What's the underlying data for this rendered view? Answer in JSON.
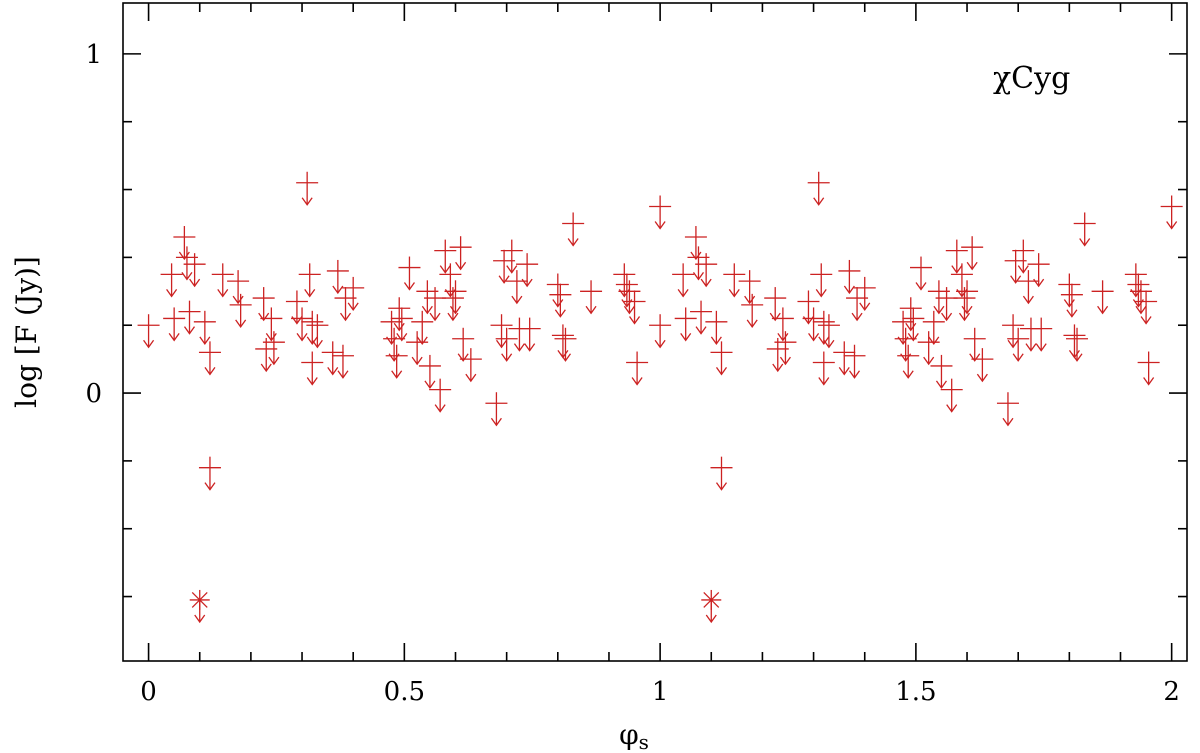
{
  "chart_data": {
    "type": "scatter",
    "title": "",
    "annotation": "χCyg",
    "xlabel_main": "φ",
    "xlabel_sub": "s",
    "ylabel": "log [F (Jy)]",
    "xlim": [
      -0.05,
      2.03
    ],
    "ylim": [
      -0.79,
      1.15
    ],
    "x_ticks": [
      0,
      0.5,
      1,
      1.5,
      2
    ],
    "x_tick_labels": [
      "0",
      "0.5",
      "1",
      "1.5",
      "2"
    ],
    "y_ticks": [
      0,
      1
    ],
    "y_tick_labels": [
      "0",
      "1"
    ],
    "marker_color": "#cc2222",
    "series": [
      {
        "marker": "upper-limit-cross",
        "points": [
          {
            "x": 0.0,
            "y": 0.2
          },
          {
            "x": 0.045,
            "y": 0.35
          },
          {
            "x": 0.05,
            "y": 0.22
          },
          {
            "x": 0.07,
            "y": 0.46
          },
          {
            "x": 0.075,
            "y": 0.4
          },
          {
            "x": 0.08,
            "y": 0.24
          },
          {
            "x": 0.09,
            "y": 0.38
          },
          {
            "x": 0.11,
            "y": 0.21
          },
          {
            "x": 0.12,
            "y": 0.12
          },
          {
            "x": 0.12,
            "y": -0.22
          },
          {
            "x": 0.145,
            "y": 0.35
          },
          {
            "x": 0.175,
            "y": 0.33
          },
          {
            "x": 0.18,
            "y": 0.26
          },
          {
            "x": 0.225,
            "y": 0.28
          },
          {
            "x": 0.23,
            "y": 0.13
          },
          {
            "x": 0.24,
            "y": 0.22
          },
          {
            "x": 0.245,
            "y": 0.15
          },
          {
            "x": 0.29,
            "y": 0.27
          },
          {
            "x": 0.3,
            "y": 0.22
          },
          {
            "x": 0.31,
            "y": 0.62
          },
          {
            "x": 0.315,
            "y": 0.35
          },
          {
            "x": 0.32,
            "y": 0.21
          },
          {
            "x": 0.32,
            "y": 0.09
          },
          {
            "x": 0.33,
            "y": 0.2
          },
          {
            "x": 0.36,
            "y": 0.12
          },
          {
            "x": 0.37,
            "y": 0.36
          },
          {
            "x": 0.38,
            "y": 0.11
          },
          {
            "x": 0.385,
            "y": 0.28
          },
          {
            "x": 0.4,
            "y": 0.31
          },
          {
            "x": 0.475,
            "y": 0.21
          },
          {
            "x": 0.48,
            "y": 0.16
          },
          {
            "x": 0.485,
            "y": 0.11
          },
          {
            "x": 0.49,
            "y": 0.25
          },
          {
            "x": 0.495,
            "y": 0.22
          },
          {
            "x": 0.51,
            "y": 0.37
          },
          {
            "x": 0.525,
            "y": 0.15
          },
          {
            "x": 0.535,
            "y": 0.21
          },
          {
            "x": 0.545,
            "y": 0.3
          },
          {
            "x": 0.55,
            "y": 0.08
          },
          {
            "x": 0.56,
            "y": 0.28
          },
          {
            "x": 0.57,
            "y": 0.01
          },
          {
            "x": 0.58,
            "y": 0.42
          },
          {
            "x": 0.59,
            "y": 0.35
          },
          {
            "x": 0.595,
            "y": 0.28
          },
          {
            "x": 0.6,
            "y": 0.3
          },
          {
            "x": 0.61,
            "y": 0.43
          },
          {
            "x": 0.615,
            "y": 0.16
          },
          {
            "x": 0.63,
            "y": 0.1
          },
          {
            "x": 0.68,
            "y": -0.03
          },
          {
            "x": 0.69,
            "y": 0.2
          },
          {
            "x": 0.695,
            "y": 0.39
          },
          {
            "x": 0.7,
            "y": 0.16
          },
          {
            "x": 0.71,
            "y": 0.42
          },
          {
            "x": 0.72,
            "y": 0.33
          },
          {
            "x": 0.725,
            "y": 0.19
          },
          {
            "x": 0.74,
            "y": 0.38
          },
          {
            "x": 0.745,
            "y": 0.19
          },
          {
            "x": 0.8,
            "y": 0.32
          },
          {
            "x": 0.805,
            "y": 0.29
          },
          {
            "x": 0.81,
            "y": 0.17
          },
          {
            "x": 0.815,
            "y": 0.16
          },
          {
            "x": 0.83,
            "y": 0.5
          },
          {
            "x": 0.865,
            "y": 0.3
          },
          {
            "x": 0.93,
            "y": 0.35
          },
          {
            "x": 0.935,
            "y": 0.32
          },
          {
            "x": 0.94,
            "y": 0.3
          },
          {
            "x": 0.95,
            "y": 0.27
          },
          {
            "x": 0.955,
            "y": 0.09
          },
          {
            "x": 1.0,
            "y": 0.55
          },
          {
            "x": 1.0,
            "y": 0.2
          },
          {
            "x": 1.045,
            "y": 0.35
          },
          {
            "x": 1.05,
            "y": 0.22
          },
          {
            "x": 1.07,
            "y": 0.46
          },
          {
            "x": 1.075,
            "y": 0.4
          },
          {
            "x": 1.08,
            "y": 0.24
          },
          {
            "x": 1.09,
            "y": 0.38
          },
          {
            "x": 1.11,
            "y": 0.21
          },
          {
            "x": 1.12,
            "y": 0.12
          },
          {
            "x": 1.12,
            "y": -0.22
          },
          {
            "x": 1.145,
            "y": 0.35
          },
          {
            "x": 1.175,
            "y": 0.33
          },
          {
            "x": 1.18,
            "y": 0.26
          },
          {
            "x": 1.225,
            "y": 0.28
          },
          {
            "x": 1.23,
            "y": 0.13
          },
          {
            "x": 1.24,
            "y": 0.22
          },
          {
            "x": 1.245,
            "y": 0.15
          },
          {
            "x": 1.29,
            "y": 0.27
          },
          {
            "x": 1.3,
            "y": 0.22
          },
          {
            "x": 1.31,
            "y": 0.62
          },
          {
            "x": 1.315,
            "y": 0.35
          },
          {
            "x": 1.32,
            "y": 0.21
          },
          {
            "x": 1.32,
            "y": 0.09
          },
          {
            "x": 1.33,
            "y": 0.2
          },
          {
            "x": 1.36,
            "y": 0.12
          },
          {
            "x": 1.37,
            "y": 0.36
          },
          {
            "x": 1.38,
            "y": 0.11
          },
          {
            "x": 1.385,
            "y": 0.28
          },
          {
            "x": 1.4,
            "y": 0.31
          },
          {
            "x": 1.475,
            "y": 0.21
          },
          {
            "x": 1.48,
            "y": 0.16
          },
          {
            "x": 1.485,
            "y": 0.11
          },
          {
            "x": 1.49,
            "y": 0.25
          },
          {
            "x": 1.495,
            "y": 0.22
          },
          {
            "x": 1.51,
            "y": 0.37
          },
          {
            "x": 1.525,
            "y": 0.15
          },
          {
            "x": 1.535,
            "y": 0.21
          },
          {
            "x": 1.545,
            "y": 0.3
          },
          {
            "x": 1.55,
            "y": 0.08
          },
          {
            "x": 1.56,
            "y": 0.28
          },
          {
            "x": 1.57,
            "y": 0.01
          },
          {
            "x": 1.58,
            "y": 0.42
          },
          {
            "x": 1.59,
            "y": 0.35
          },
          {
            "x": 1.595,
            "y": 0.28
          },
          {
            "x": 1.6,
            "y": 0.3
          },
          {
            "x": 1.61,
            "y": 0.43
          },
          {
            "x": 1.615,
            "y": 0.16
          },
          {
            "x": 1.63,
            "y": 0.1
          },
          {
            "x": 1.68,
            "y": -0.03
          },
          {
            "x": 1.69,
            "y": 0.2
          },
          {
            "x": 1.695,
            "y": 0.39
          },
          {
            "x": 1.7,
            "y": 0.16
          },
          {
            "x": 1.71,
            "y": 0.42
          },
          {
            "x": 1.72,
            "y": 0.33
          },
          {
            "x": 1.725,
            "y": 0.19
          },
          {
            "x": 1.74,
            "y": 0.38
          },
          {
            "x": 1.745,
            "y": 0.19
          },
          {
            "x": 1.8,
            "y": 0.32
          },
          {
            "x": 1.805,
            "y": 0.29
          },
          {
            "x": 1.81,
            "y": 0.17
          },
          {
            "x": 1.815,
            "y": 0.16
          },
          {
            "x": 1.83,
            "y": 0.5
          },
          {
            "x": 1.865,
            "y": 0.3
          },
          {
            "x": 1.93,
            "y": 0.35
          },
          {
            "x": 1.935,
            "y": 0.32
          },
          {
            "x": 1.94,
            "y": 0.3
          },
          {
            "x": 1.95,
            "y": 0.27
          },
          {
            "x": 1.955,
            "y": 0.09
          },
          {
            "x": 2.0,
            "y": 0.55
          }
        ]
      },
      {
        "marker": "asterisk-upper-limit",
        "points": [
          {
            "x": 0.1,
            "y": -0.61
          },
          {
            "x": 1.1,
            "y": -0.61
          }
        ]
      }
    ]
  }
}
